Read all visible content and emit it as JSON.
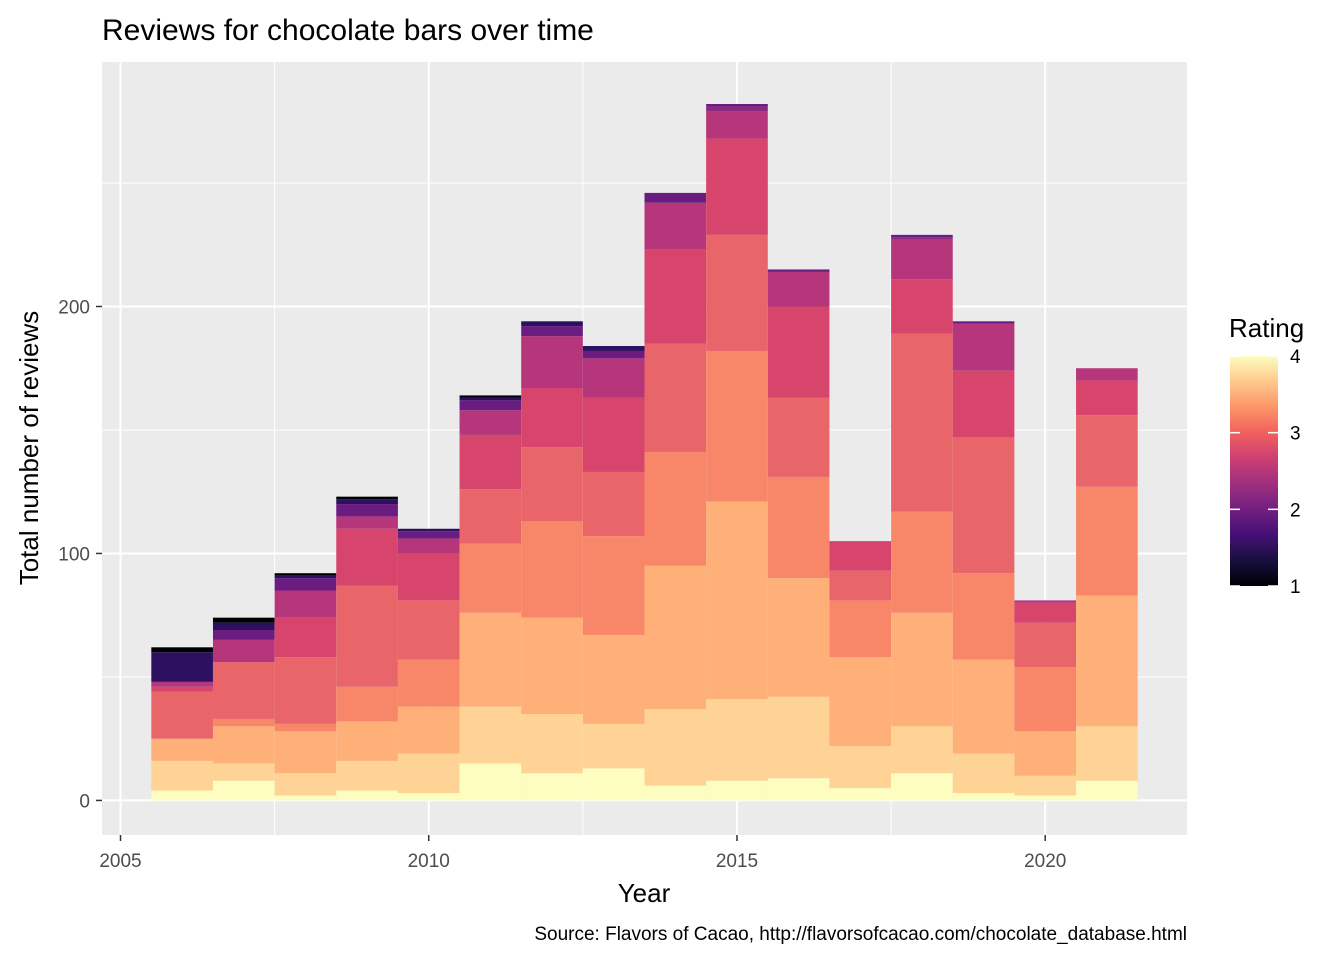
{
  "chart_data": {
    "type": "bar",
    "title": "Reviews for chocolate bars over time",
    "xlabel": "Year",
    "ylabel": "Total number of reviews",
    "caption": "Source: Flavors of Cacao, http://flavorsofcacao.com/chocolate_database.html",
    "xlim": [
      2004.7,
      2022.3
    ],
    "ylim": [
      -14,
      299
    ],
    "x_ticks": [
      2005,
      2010,
      2015,
      2020
    ],
    "y_ticks": [
      0,
      100,
      200
    ],
    "x_tick_labels": [
      "2005",
      "2010",
      "2015",
      "2020"
    ],
    "y_tick_labels": [
      "0",
      "100",
      "200"
    ],
    "grid": true,
    "stacked": true,
    "categories": [
      2006,
      2007,
      2008,
      2009,
      2010,
      2011,
      2012,
      2013,
      2014,
      2015,
      2016,
      2017,
      2018,
      2019,
      2020,
      2021
    ],
    "series": [
      {
        "rating": 4.0,
        "color": "#FCFDBF",
        "values": [
          4,
          8,
          2,
          4,
          3,
          15,
          11,
          13,
          6,
          8,
          9,
          5,
          11,
          3,
          2,
          8
        ]
      },
      {
        "rating": 3.75,
        "color": "#FED395",
        "values": [
          12,
          7,
          9,
          12,
          16,
          23,
          24,
          18,
          31,
          33,
          33,
          17,
          19,
          16,
          8,
          22
        ]
      },
      {
        "rating": 3.5,
        "color": "#FEB078",
        "values": [
          9,
          15,
          17,
          16,
          19,
          38,
          39,
          36,
          58,
          80,
          48,
          36,
          46,
          38,
          18,
          53
        ]
      },
      {
        "rating": 3.25,
        "color": "#F8876A",
        "values": [
          0,
          3,
          3,
          14,
          19,
          28,
          39,
          40,
          46,
          61,
          41,
          23,
          41,
          35,
          26,
          44
        ]
      },
      {
        "rating": 3.0,
        "color": "#E8656A",
        "values": [
          19,
          23,
          27,
          41,
          24,
          22,
          30,
          26,
          44,
          47,
          32,
          12,
          72,
          55,
          18,
          29
        ]
      },
      {
        "rating": 2.75,
        "color": "#D8456C",
        "values": [
          2,
          0,
          16,
          23,
          19,
          22,
          24,
          30,
          38,
          39,
          37,
          12,
          22,
          27,
          8,
          14
        ]
      },
      {
        "rating": 2.5,
        "color": "#B5367A",
        "values": [
          2,
          9,
          11,
          5,
          6,
          10,
          21,
          16,
          19,
          11,
          14,
          0,
          16,
          19,
          1,
          5
        ]
      },
      {
        "rating": 2.25,
        "color": "#8C2981",
        "values": [
          0,
          0,
          0,
          0,
          0,
          0,
          0,
          0,
          0,
          2,
          0,
          0,
          1,
          0,
          0,
          0
        ]
      },
      {
        "rating": 2.0,
        "color": "#6A1C81",
        "values": [
          0,
          4,
          5,
          5,
          3,
          4,
          4,
          3,
          4,
          1,
          1,
          0,
          1,
          1,
          0,
          0
        ]
      },
      {
        "rating": 1.75,
        "color": "#4A1079",
        "values": [
          0,
          0,
          0,
          0,
          0,
          0,
          0,
          0,
          0,
          0,
          0,
          0,
          0,
          0,
          0,
          0
        ]
      },
      {
        "rating": 1.5,
        "color": "#2D1160",
        "values": [
          12,
          3,
          1,
          2,
          1,
          1,
          2,
          2,
          0,
          0,
          0,
          0,
          0,
          0,
          0,
          0
        ]
      },
      {
        "rating": 1.0,
        "color": "#000004",
        "values": [
          2,
          2,
          1,
          1,
          0,
          1,
          0,
          0,
          0,
          0,
          0,
          0,
          0,
          0,
          0,
          0
        ]
      }
    ],
    "totals": [
      62,
      74,
      92,
      123,
      110,
      164,
      194,
      184,
      246,
      282,
      215,
      105,
      229,
      194,
      81,
      175
    ],
    "legend": {
      "title": "Rating",
      "position": "right",
      "type": "colorbar",
      "range": [
        1,
        4
      ],
      "ticks": [
        1,
        2,
        3,
        4
      ],
      "tick_labels": [
        "1",
        "2",
        "3",
        "4"
      ],
      "colors": [
        "#000004",
        "#180F3E",
        "#451077",
        "#721F81",
        "#9F2F7F",
        "#CD4071",
        "#F1605D",
        "#FD9567",
        "#FEC98D",
        "#FCFDBF"
      ]
    }
  }
}
